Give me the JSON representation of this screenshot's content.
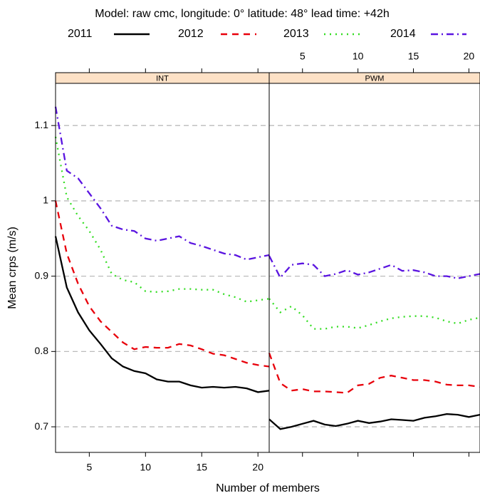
{
  "title": "Model: raw cmc, longitude:  0° latitude: 48° lead time: +42h",
  "x_label": "Number of members",
  "y_label": "Mean crps (m/s)",
  "chart_data": [
    {
      "type": "line",
      "title": "INT",
      "x": [
        2,
        3,
        4,
        5,
        6,
        7,
        8,
        9,
        10,
        11,
        12,
        13,
        14,
        15,
        16,
        17,
        18,
        19,
        20,
        21
      ],
      "xlim": [
        2,
        21
      ],
      "xticks": [
        5,
        10,
        15,
        20
      ],
      "ylim": [
        0.666,
        1.156
      ],
      "yticks": [
        0.7,
        0.8,
        0.9,
        1.0,
        1.1
      ],
      "grid": true,
      "series": [
        {
          "name": "2011",
          "color": "#000000",
          "dash": "none",
          "values": [
            0.953,
            0.885,
            0.852,
            0.828,
            0.81,
            0.791,
            0.78,
            0.774,
            0.771,
            0.763,
            0.76,
            0.76,
            0.755,
            0.752,
            0.753,
            0.752,
            0.753,
            0.751,
            0.746,
            0.748
          ]
        },
        {
          "name": "2012",
          "color": "#e8000b",
          "dash": "9 7",
          "values": [
            1.0,
            0.93,
            0.89,
            0.86,
            0.84,
            0.826,
            0.812,
            0.803,
            0.806,
            0.805,
            0.805,
            0.81,
            0.808,
            0.803,
            0.797,
            0.795,
            0.79,
            0.785,
            0.782,
            0.78
          ]
        },
        {
          "name": "2013",
          "color": "#33dd22",
          "dash": "2 6",
          "values": [
            1.085,
            1.005,
            0.98,
            0.96,
            0.935,
            0.903,
            0.895,
            0.892,
            0.88,
            0.879,
            0.88,
            0.883,
            0.883,
            0.882,
            0.882,
            0.876,
            0.872,
            0.866,
            0.868,
            0.87
          ]
        },
        {
          "name": "2014",
          "color": "#5a14e0",
          "dash": "10 5 2 5",
          "values": [
            1.125,
            1.04,
            1.03,
            1.01,
            0.99,
            0.967,
            0.962,
            0.96,
            0.95,
            0.947,
            0.95,
            0.953,
            0.944,
            0.94,
            0.935,
            0.93,
            0.928,
            0.922,
            0.925,
            0.928
          ]
        }
      ]
    },
    {
      "type": "line",
      "title": "PWM",
      "x": [
        2,
        3,
        4,
        5,
        6,
        7,
        8,
        9,
        10,
        11,
        12,
        13,
        14,
        15,
        16,
        17,
        18,
        19,
        20,
        21
      ],
      "xlim": [
        2,
        21
      ],
      "xticks": [
        5,
        10,
        15,
        20
      ],
      "ylim": [
        0.666,
        1.156
      ],
      "yticks": [
        0.7,
        0.8,
        0.9,
        1.0,
        1.1
      ],
      "grid": true,
      "series": [
        {
          "name": "2011",
          "color": "#000000",
          "dash": "none",
          "values": [
            0.71,
            0.697,
            0.7,
            0.704,
            0.708,
            0.703,
            0.701,
            0.704,
            0.708,
            0.705,
            0.707,
            0.71,
            0.709,
            0.708,
            0.712,
            0.714,
            0.717,
            0.716,
            0.713,
            0.716
          ]
        },
        {
          "name": "2012",
          "color": "#e8000b",
          "dash": "9 7",
          "values": [
            0.798,
            0.758,
            0.748,
            0.75,
            0.747,
            0.747,
            0.746,
            0.745,
            0.755,
            0.757,
            0.765,
            0.768,
            0.765,
            0.762,
            0.762,
            0.76,
            0.756,
            0.755,
            0.755,
            0.753
          ]
        },
        {
          "name": "2013",
          "color": "#33dd22",
          "dash": "2 6",
          "values": [
            0.87,
            0.852,
            0.86,
            0.848,
            0.83,
            0.83,
            0.833,
            0.833,
            0.831,
            0.835,
            0.84,
            0.844,
            0.846,
            0.847,
            0.847,
            0.845,
            0.84,
            0.837,
            0.842,
            0.845
          ]
        },
        {
          "name": "2014",
          "color": "#5a14e0",
          "dash": "10 5 2 5",
          "values": [
            0.927,
            0.898,
            0.915,
            0.917,
            0.915,
            0.9,
            0.903,
            0.908,
            0.902,
            0.905,
            0.91,
            0.915,
            0.907,
            0.908,
            0.905,
            0.9,
            0.9,
            0.897,
            0.9,
            0.903
          ]
        }
      ]
    }
  ]
}
